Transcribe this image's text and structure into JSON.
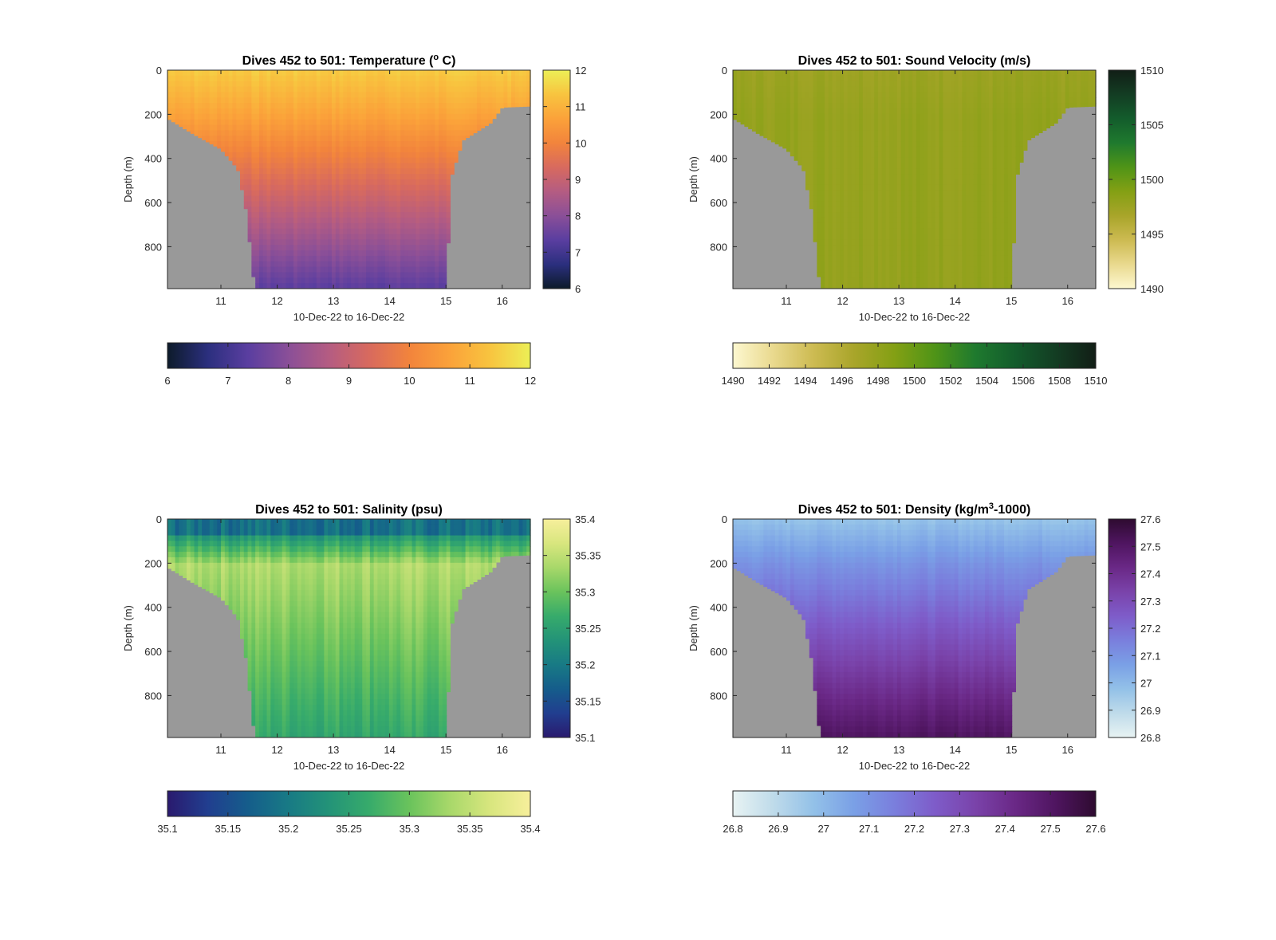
{
  "figure": {
    "subtitle_date_range": "10-Dec-22 to 16-Dec-22"
  },
  "chart_data": [
    {
      "type": "heatmap",
      "title_prefix": "Dives 452 to 501: ",
      "title_main": "Temperature (",
      "title_super": "o",
      "title_rest": " C)",
      "xlabel": "10-Dec-22 to 16-Dec-22",
      "ylabel": "Depth (m)",
      "x_ticks": [
        "11",
        "12",
        "13",
        "14",
        "15",
        "16"
      ],
      "x_tick_values": [
        11,
        12,
        13,
        14,
        15,
        16
      ],
      "xlim": [
        10.05,
        16.5
      ],
      "y_ticks": [
        "0",
        "200",
        "400",
        "600",
        "800"
      ],
      "y_tick_values": [
        0,
        200,
        400,
        600,
        800
      ],
      "ylim": [
        0,
        990
      ],
      "y_reversed": true,
      "no_data_color": "#999999",
      "colorbar_right": {
        "ticks": [
          "12",
          "11",
          "10",
          "9",
          "8",
          "7",
          "6"
        ],
        "range": [
          6,
          12
        ]
      },
      "colorbar_bottom": {
        "ticks": [
          "6",
          "7",
          "8",
          "9",
          "10",
          "11",
          "12"
        ],
        "range": [
          6,
          12
        ]
      },
      "colormap": [
        "#0d1b2a",
        "#2b2f7e",
        "#5a3ea0",
        "#8a4f98",
        "#b45c82",
        "#d86a5e",
        "#f2843c",
        "#fba23a",
        "#f8c43f",
        "#ecef56"
      ],
      "bathymetry_depth_by_day": [
        [
          10.05,
          220
        ],
        [
          10.5,
          290
        ],
        [
          11.0,
          360
        ],
        [
          11.3,
          450
        ],
        [
          11.45,
          640
        ],
        [
          11.6,
          990
        ],
        [
          15.0,
          990
        ],
        [
          15.1,
          480
        ],
        [
          15.3,
          320
        ],
        [
          15.8,
          240
        ],
        [
          16.0,
          170
        ],
        [
          16.5,
          165
        ]
      ],
      "profile": {
        "surface": 11.4,
        "mid": 9.6,
        "deep": 7.3
      }
    },
    {
      "type": "heatmap",
      "title_prefix": "Dives 452 to 501: ",
      "title_main": "Sound Velocity (m/s)",
      "title_super": "",
      "title_rest": "",
      "xlabel": "10-Dec-22 to 16-Dec-22",
      "ylabel": "Depth (m)",
      "x_ticks": [
        "11",
        "12",
        "13",
        "14",
        "15",
        "16"
      ],
      "x_tick_values": [
        11,
        12,
        13,
        14,
        15,
        16
      ],
      "xlim": [
        10.05,
        16.5
      ],
      "y_ticks": [
        "0",
        "200",
        "400",
        "600",
        "800"
      ],
      "y_tick_values": [
        0,
        200,
        400,
        600,
        800
      ],
      "ylim": [
        0,
        990
      ],
      "y_reversed": true,
      "no_data_color": "#999999",
      "colorbar_right": {
        "ticks": [
          "1510",
          "1505",
          "1500",
          "1495",
          "1490"
        ],
        "range": [
          1490,
          1510
        ]
      },
      "colorbar_bottom": {
        "ticks": [
          "1490",
          "1492",
          "1494",
          "1496",
          "1498",
          "1500",
          "1502",
          "1504",
          "1506",
          "1508",
          "1510"
        ],
        "range": [
          1490,
          1510
        ]
      },
      "colormap": [
        "#fdf8d0",
        "#e9d98e",
        "#cdbb52",
        "#a9a52a",
        "#84a014",
        "#4f9417",
        "#1f7a2e",
        "#135c2c",
        "#133d23",
        "#121e16"
      ],
      "bathymetry_depth_by_day": [
        [
          10.05,
          220
        ],
        [
          10.5,
          290
        ],
        [
          11.0,
          360
        ],
        [
          11.3,
          450
        ],
        [
          11.45,
          640
        ],
        [
          11.6,
          990
        ],
        [
          15.0,
          990
        ],
        [
          15.1,
          480
        ],
        [
          15.3,
          320
        ],
        [
          15.8,
          240
        ],
        [
          16.0,
          170
        ],
        [
          16.5,
          165
        ]
      ],
      "profile": {
        "surface": 1497.5,
        "mid": 1498.5,
        "deep": 1498.0
      }
    },
    {
      "type": "heatmap",
      "title_prefix": "Dives 452 to 501: ",
      "title_main": "Salinity (psu)",
      "title_super": "",
      "title_rest": "",
      "xlabel": "10-Dec-22 to 16-Dec-22",
      "ylabel": "Depth (m)",
      "x_ticks": [
        "11",
        "12",
        "13",
        "14",
        "15",
        "16"
      ],
      "x_tick_values": [
        11,
        12,
        13,
        14,
        15,
        16
      ],
      "xlim": [
        10.05,
        16.5
      ],
      "y_ticks": [
        "0",
        "200",
        "400",
        "600",
        "800"
      ],
      "y_tick_values": [
        0,
        200,
        400,
        600,
        800
      ],
      "ylim": [
        0,
        990
      ],
      "y_reversed": true,
      "no_data_color": "#999999",
      "colorbar_right": {
        "ticks": [
          "35.4",
          "35.35",
          "35.3",
          "35.25",
          "35.2",
          "35.15",
          "35.1"
        ],
        "range": [
          35.1,
          35.4
        ]
      },
      "colorbar_bottom": {
        "ticks": [
          "35.1",
          "35.15",
          "35.2",
          "35.25",
          "35.3",
          "35.35",
          "35.4"
        ],
        "range": [
          35.1,
          35.4
        ]
      },
      "colormap": [
        "#2a1a6e",
        "#213e8f",
        "#155d8b",
        "#187a85",
        "#239378",
        "#37ab6b",
        "#6ac35c",
        "#a8d86a",
        "#d8e67e",
        "#f7ef9c"
      ],
      "bathymetry_depth_by_day": [
        [
          10.05,
          220
        ],
        [
          10.5,
          290
        ],
        [
          11.0,
          360
        ],
        [
          11.3,
          450
        ],
        [
          11.45,
          640
        ],
        [
          11.6,
          990
        ],
        [
          15.0,
          990
        ],
        [
          15.1,
          480
        ],
        [
          15.3,
          320
        ],
        [
          15.8,
          240
        ],
        [
          16.0,
          170
        ],
        [
          16.5,
          165
        ]
      ],
      "profile": {
        "surface": 35.24,
        "mid": 35.34,
        "deep": 35.26
      }
    },
    {
      "type": "heatmap",
      "title_prefix": "Dives 452 to 501: ",
      "title_main": "Density (kg/m",
      "title_super": "3",
      "title_rest": "-1000)",
      "xlabel": "10-Dec-22 to 16-Dec-22",
      "ylabel": "Depth (m)",
      "x_ticks": [
        "11",
        "12",
        "13",
        "14",
        "15",
        "16"
      ],
      "x_tick_values": [
        11,
        12,
        13,
        14,
        15,
        16
      ],
      "xlim": [
        10.05,
        16.5
      ],
      "y_ticks": [
        "0",
        "200",
        "400",
        "600",
        "800"
      ],
      "y_tick_values": [
        0,
        200,
        400,
        600,
        800
      ],
      "ylim": [
        0,
        990
      ],
      "y_reversed": true,
      "no_data_color": "#999999",
      "colorbar_right": {
        "ticks": [
          "27.6",
          "27.5",
          "27.4",
          "27.3",
          "27.2",
          "27.1",
          "27",
          "26.9",
          "26.8"
        ],
        "range": [
          26.8,
          27.6
        ]
      },
      "colorbar_bottom": {
        "ticks": [
          "26.8",
          "26.9",
          "27",
          "27.1",
          "27.2",
          "27.3",
          "27.4",
          "27.5",
          "27.6"
        ],
        "range": [
          26.8,
          27.6
        ]
      },
      "colormap": [
        "#e8f3f3",
        "#bfdbea",
        "#93c1e8",
        "#7aa0e6",
        "#7a7fdd",
        "#7e5cc9",
        "#7a43aa",
        "#6a2886",
        "#4f1560",
        "#2e0b30"
      ],
      "bathymetry_depth_by_day": [
        [
          10.05,
          220
        ],
        [
          10.5,
          290
        ],
        [
          11.0,
          360
        ],
        [
          11.3,
          450
        ],
        [
          11.45,
          640
        ],
        [
          11.6,
          990
        ],
        [
          15.0,
          990
        ],
        [
          15.1,
          480
        ],
        [
          15.3,
          320
        ],
        [
          15.8,
          240
        ],
        [
          16.0,
          170
        ],
        [
          16.5,
          165
        ]
      ],
      "profile": {
        "surface": 26.98,
        "mid": 27.3,
        "deep": 27.52
      }
    }
  ]
}
